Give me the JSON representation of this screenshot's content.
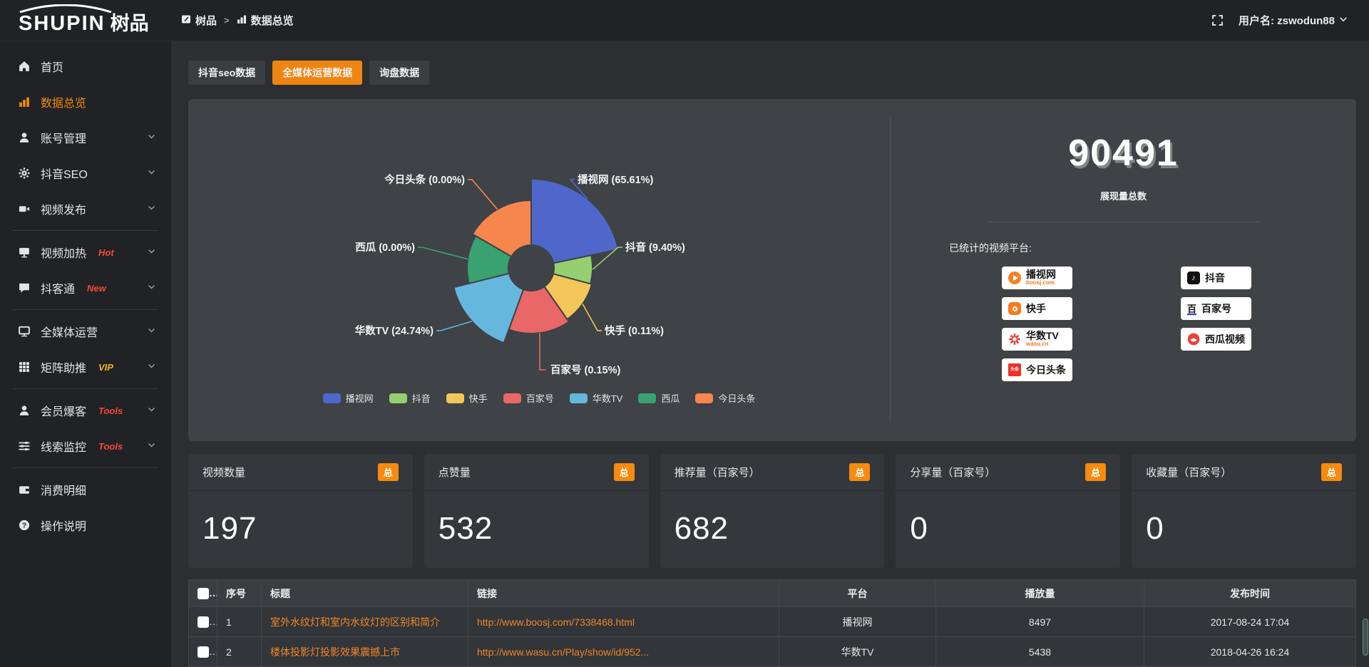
{
  "topbar": {
    "logo_main": "SHUPIN",
    "logo_cn": "树品",
    "breadcrumb": [
      {
        "label": "树品",
        "icon": "app-icon"
      },
      {
        "label": "数据总览",
        "icon": "bar-chart-icon"
      }
    ],
    "breadcrumb_separator": ">",
    "username": "用户名: zswodun88"
  },
  "sidebar": {
    "items": [
      {
        "label": "首页",
        "icon": "home"
      },
      {
        "label": "数据总览",
        "icon": "bar-chart",
        "active": true
      },
      {
        "label": "账号管理",
        "icon": "user",
        "chevron": true
      },
      {
        "label": "抖音SEO",
        "icon": "gear",
        "chevron": true
      },
      {
        "label": "视频发布",
        "icon": "video-camera",
        "chevron": true
      },
      {
        "divider": true
      },
      {
        "label": "视频加热",
        "icon": "screen-play",
        "tag": "Hot",
        "tag_color": "#f4483a",
        "chevron": true
      },
      {
        "label": "抖客通",
        "icon": "chat-bubble",
        "tag": "New",
        "tag_color": "#f4483a",
        "chevron": true
      },
      {
        "divider": true
      },
      {
        "label": "全媒体运营",
        "icon": "monitor",
        "chevron": true
      },
      {
        "label": "矩阵助推",
        "icon": "grid",
        "tag": "VIP",
        "tag_color": "#efb71c",
        "chevron": true
      },
      {
        "divider": true
      },
      {
        "label": "会员爆客",
        "icon": "user",
        "tag": "Tools",
        "tag_color": "#f4483a",
        "chevron": true
      },
      {
        "label": "线索监控",
        "icon": "sliders",
        "tag": "Tools",
        "tag_color": "#f4483a",
        "chevron": true
      },
      {
        "divider": true
      },
      {
        "label": "消费明细",
        "icon": "wallet"
      },
      {
        "label": "操作说明",
        "icon": "question-circle"
      }
    ]
  },
  "tabs": [
    {
      "label": "抖音seo数据",
      "active": false
    },
    {
      "label": "全媒体运营数据",
      "active": true
    },
    {
      "label": "询盘数据",
      "active": false
    }
  ],
  "chart_data": {
    "type": "pie",
    "variant": "nightingale-rose-donut",
    "legend_position": "bottom",
    "items": [
      {
        "name": "播视网",
        "value": 65.61,
        "label": "播视网 (65.61%)",
        "color": "#4f67cb"
      },
      {
        "name": "抖音",
        "value": 9.4,
        "label": "抖音 (9.40%)",
        "color": "#95cf70"
      },
      {
        "name": "快手",
        "value": 0.11,
        "label": "快手 (0.11%)",
        "color": "#f3c659"
      },
      {
        "name": "百家号",
        "value": 0.15,
        "label": "百家号 (0.15%)",
        "color": "#e96767"
      },
      {
        "name": "华数TV",
        "value": 24.74,
        "label": "华数TV (24.74%)",
        "color": "#66b7dd"
      },
      {
        "name": "西瓜",
        "value": 0.0,
        "label": "西瓜 (0.00%)",
        "color": "#3aa171"
      },
      {
        "name": "今日头条",
        "value": 0.0,
        "label": "今日头条 (0.00%)",
        "color": "#f6854e"
      }
    ],
    "legend": [
      "播视网",
      "抖音",
      "快手",
      "百家号",
      "华数TV",
      "西瓜",
      "今日头条"
    ]
  },
  "overview": {
    "total": "90491",
    "total_label": "展现量总数",
    "platforms_title": "已统计的视频平台:",
    "platforms": [
      {
        "name": "播视网",
        "sub": "boosj.com",
        "icon": "boosj-logo"
      },
      {
        "name": "快手",
        "icon": "kuaishou-logo"
      },
      {
        "name": "华数TV",
        "sub": "wasu.cn",
        "icon": "wasu-logo"
      },
      {
        "name": "今日头条",
        "icon": "toutiao-logo"
      },
      {
        "name": "抖音",
        "icon": "douyin-logo"
      },
      {
        "name": "百家号",
        "icon": "baijiahao-logo"
      },
      {
        "name": "西瓜视频",
        "icon": "xigua-logo"
      }
    ]
  },
  "stat_cards": [
    {
      "title": "视频数量",
      "badge": "总",
      "value": "197"
    },
    {
      "title": "点赞量",
      "badge": "总",
      "value": "532"
    },
    {
      "title": "推荐量（百家号）",
      "badge": "总",
      "value": "682"
    },
    {
      "title": "分享量（百家号）",
      "badge": "总",
      "value": "0"
    },
    {
      "title": "收藏量（百家号）",
      "badge": "总",
      "value": "0"
    }
  ],
  "table": {
    "headers": [
      "序号",
      "标题",
      "链接",
      "平台",
      "播放量",
      "发布时间"
    ],
    "rows": [
      {
        "no": "1",
        "title": "室外水纹灯和室内水纹灯的区别和简介",
        "link": "http://www.boosj.com/7338468.html",
        "platform": "播视网",
        "views": "8497",
        "time": "2017-08-24 17:04"
      },
      {
        "no": "2",
        "title": "楼体投影灯投影效果震撼上市",
        "link": "http://www.wasu.cn/Play/show/id/952...",
        "platform": "华数TV",
        "views": "5438",
        "time": "2018-04-26 16:24"
      }
    ]
  },
  "colors": {
    "accent_orange": "#ee8511",
    "link_orange": "#ef8629",
    "hot_red": "#f4483a",
    "vip_yellow": "#efb71c"
  }
}
